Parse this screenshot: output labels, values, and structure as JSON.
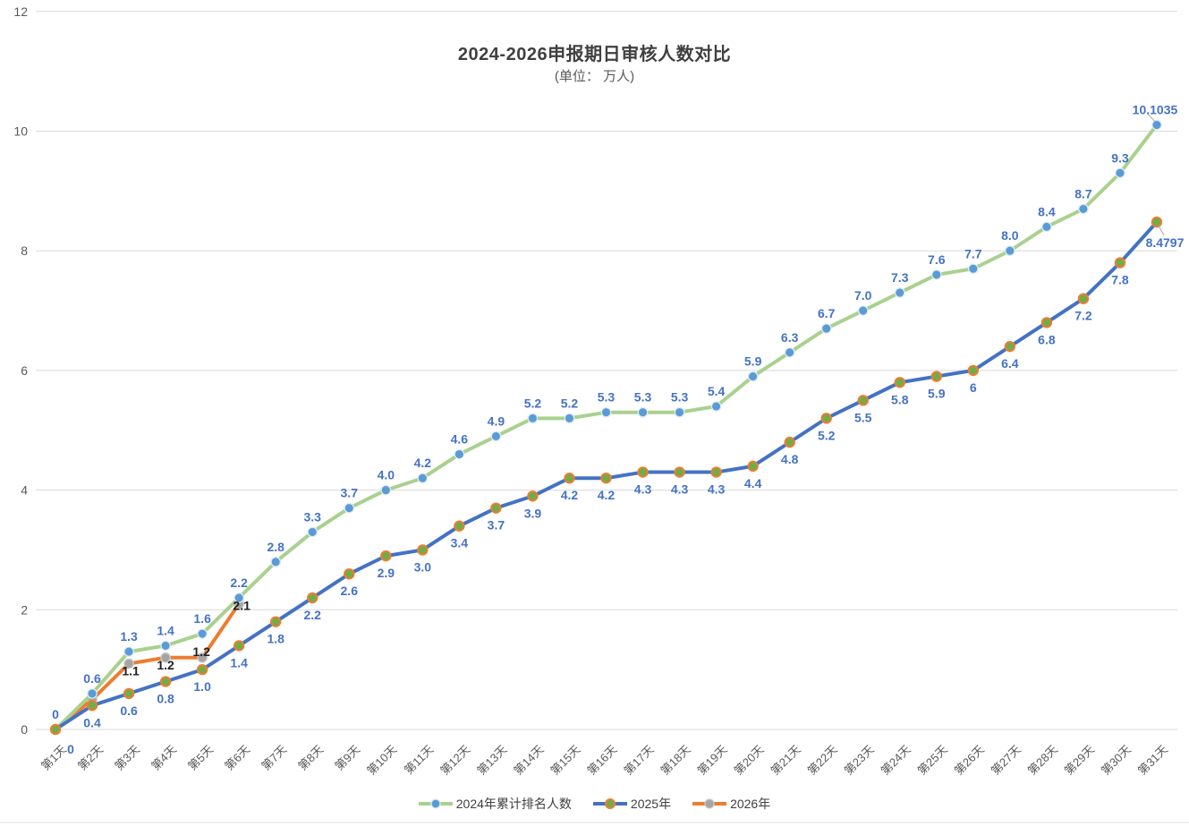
{
  "title": "2024-2026申报期日审核人数对比",
  "subtitle": "(单位： 万人)",
  "chart_data": {
    "type": "line",
    "x": [
      "第1天",
      "第2天",
      "第3天",
      "第4天",
      "第5天",
      "第6天",
      "第7天",
      "第8天",
      "第9天",
      "第10天",
      "第11天",
      "第12天",
      "第13天",
      "第14天",
      "第15天",
      "第16天",
      "第17天",
      "第18天",
      "第19天",
      "第20天",
      "第21天",
      "第22天",
      "第23天",
      "第24天",
      "第25天",
      "第26天",
      "第27天",
      "第28天",
      "第29天",
      "第30天",
      "第31天"
    ],
    "ylim": [
      0,
      12
    ],
    "yticks": [
      0,
      2,
      4,
      6,
      8,
      10,
      12
    ],
    "ytick_labels": [
      "0",
      "2",
      "4",
      "6",
      "8",
      "10",
      "12"
    ],
    "grid": true,
    "legend_position": "bottom",
    "unit": "万人",
    "series": [
      {
        "name": "2024年累计排名人数",
        "values": [
          0,
          0.6,
          1.3,
          1.4,
          1.6,
          2.2,
          2.8,
          3.3,
          3.7,
          4.0,
          4.2,
          4.6,
          4.9,
          5.2,
          5.2,
          5.3,
          5.3,
          5.3,
          5.4,
          5.9,
          6.3,
          6.7,
          7.0,
          7.3,
          7.6,
          7.7,
          8.0,
          8.4,
          8.7,
          9.3,
          10.1035
        ],
        "labels": [
          "0",
          "0.6",
          "1.3",
          "1.4",
          "1.6",
          "2.2",
          "2.8",
          "3.3",
          "3.7",
          "4.0",
          "4.2",
          "4.6",
          "4.9",
          "5.2",
          "5.2",
          "5.3",
          "5.3",
          "5.3",
          "5.4",
          "5.9",
          "6.3",
          "6.7",
          "7.0",
          "7.3",
          "7.6",
          "7.7",
          "8.0",
          "8.4",
          "8.7",
          "9.3",
          "10.1035"
        ],
        "line_color": "#A9D18E",
        "marker_color": "#5B9BD5",
        "marker_stroke": "#DEEBF7",
        "label_color": "#4472C4",
        "label_side": "above",
        "label_overrides": {
          "30": [
            -2,
            -12
          ]
        },
        "leader_last": true
      },
      {
        "name": "2025年",
        "values": [
          0,
          0.4,
          0.6,
          0.8,
          1.0,
          1.4,
          1.8,
          2.2,
          2.6,
          2.9,
          3.0,
          3.4,
          3.7,
          3.9,
          4.2,
          4.2,
          4.3,
          4.3,
          4.3,
          4.4,
          4.8,
          5.2,
          5.5,
          5.8,
          5.9,
          6,
          6.4,
          6.8,
          7.2,
          7.8,
          8.4797
        ],
        "labels": [
          "0",
          "0.4",
          "0.6",
          "0.8",
          "1.0",
          "1.4",
          "1.8",
          "2.2",
          "2.6",
          "2.9",
          "3.0",
          "3.4",
          "3.7",
          "3.9",
          "4.2",
          "4.2",
          "4.3",
          "4.3",
          "4.3",
          "4.4",
          "4.8",
          "5.2",
          "5.5",
          "5.8",
          "5.9",
          "6",
          "6.4",
          "6.8",
          "7.2",
          "7.8",
          "8.4797"
        ],
        "line_color": "#4472C4",
        "marker_color": "#70AD47",
        "marker_stroke": "#ED7D31",
        "label_color": "#4472C4",
        "label_side": "below",
        "label_overrides": {
          "0": [
            17,
            27
          ],
          "30": [
            9,
            28
          ]
        },
        "leader_last": true
      },
      {
        "name": "2026年",
        "values": [
          0,
          0.5,
          1.1,
          1.2,
          1.2,
          2.1
        ],
        "labels": [
          "",
          "",
          "1.1",
          "1.2",
          "1.2",
          "2.1"
        ],
        "line_color": "#ED7D31",
        "marker_color": "#A5A5A5",
        "marker_stroke": "#C9C9C9",
        "label_color": "#1F1F1F",
        "label_side": "custom",
        "label_overrides": {
          "2": [
            2,
            13
          ],
          "3": [
            0,
            13
          ],
          "4": [
            -1,
            -2
          ],
          "5": [
            3,
            7
          ]
        }
      }
    ]
  }
}
